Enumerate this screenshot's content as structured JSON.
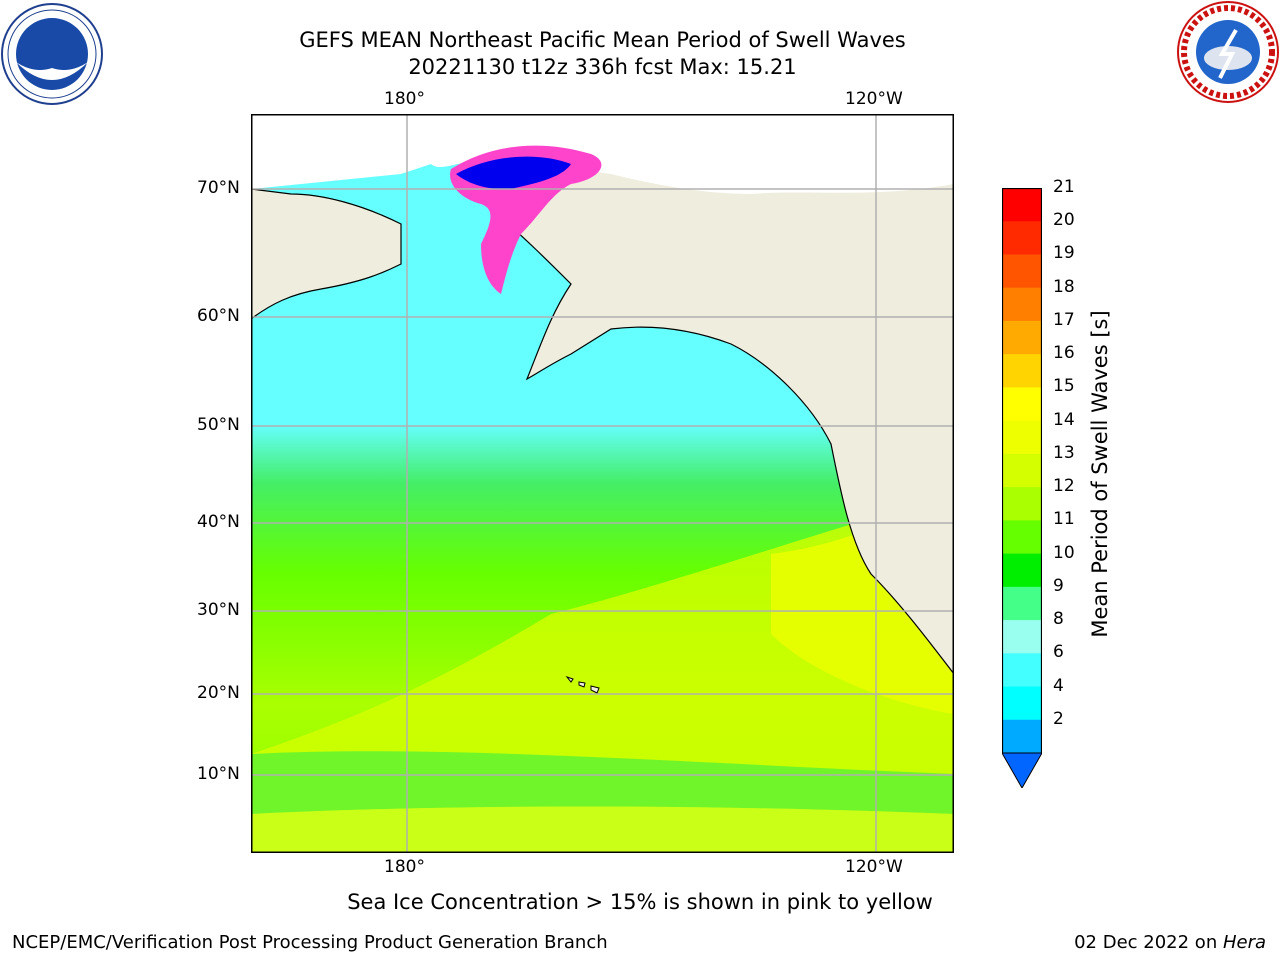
{
  "header": {
    "title": "GEFS MEAN Northeast Pacific Mean Period of Swell Waves",
    "subtitle": "20221130 t12z 336h fcst   Max: 15.21"
  },
  "map": {
    "lon_labels_top": [
      "180°",
      "120°W"
    ],
    "lon_labels_bottom": [
      "180°",
      "120°W"
    ],
    "lat_labels": [
      "70°N",
      "60°N",
      "50°N",
      "40°N",
      "30°N",
      "20°N",
      "10°N"
    ],
    "colors": {
      "ocean_swell": "#66ff00",
      "long_period": "#e8ff00",
      "short_period": "#66ffff",
      "land": "#efeddd",
      "ice_pink": "#ff44cc",
      "ice_deep": "#0000ee",
      "grid": "#b0b0b0"
    }
  },
  "colorbar": {
    "label": "Mean Period of Swell Waves [s]",
    "ticks": [
      "21",
      "20",
      "19",
      "18",
      "17",
      "16",
      "15",
      "14",
      "13",
      "12",
      "11",
      "10",
      "9",
      "8",
      "6",
      "4",
      "2"
    ],
    "colors": [
      "#ff0000",
      "#ff2a00",
      "#ff5500",
      "#ff8000",
      "#ffaa00",
      "#ffd400",
      "#ffff00",
      "#eeff00",
      "#d4ff00",
      "#aaff00",
      "#66ff00",
      "#00ee00",
      "#44ff88",
      "#99ffee",
      "#44ffff",
      "#00ffff",
      "#00aaff",
      "#0066ff"
    ]
  },
  "notes": {
    "ice_note": "Sea Ice Concentration > 15% is shown in pink to yellow"
  },
  "footer": {
    "left": "NCEP/EMC/Verification Post Processing Product Generation Branch",
    "right_date": "02 Dec 2022 on ",
    "right_host": "Hera"
  },
  "logos": {
    "left": "noaa-logo",
    "right": "nws-logo"
  }
}
